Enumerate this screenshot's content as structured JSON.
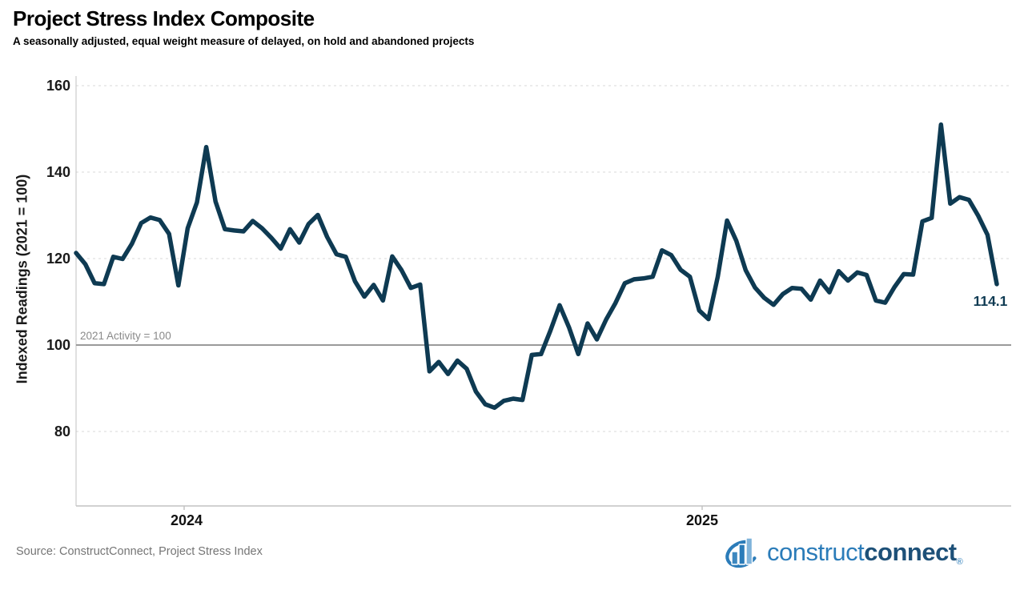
{
  "header": {
    "title": "Project Stress Index Composite",
    "subtitle": "A seasonally adjusted, equal weight measure of delayed, on hold and abandoned projects"
  },
  "chart_data": {
    "type": "line",
    "title": "Project Stress Index Composite",
    "ylabel": "Indexed Readings (2021 = 100)",
    "xlabel": "",
    "ylim": [
      80,
      160
    ],
    "yticks": [
      160,
      140,
      120,
      100,
      80
    ],
    "ytick_labels": [
      "160",
      "140",
      "120",
      "100",
      "80"
    ],
    "xtick_labels": [
      "2024",
      "2025"
    ],
    "grid": "horizontal-dashed",
    "legend": "none",
    "reference_line": {
      "value": 100,
      "label": "2021 Activity = 100"
    },
    "end_label": "114.1",
    "last_value": 114.1,
    "series": [
      {
        "name": "Project Stress Index Composite",
        "values": [
          121.3,
          118.7,
          114.3,
          114.1,
          120.4,
          119.9,
          123.4,
          128.2,
          129.5,
          128.9,
          125.7,
          113.8,
          127.0,
          133.0,
          145.8,
          133.2,
          126.8,
          126.5,
          126.3,
          128.7,
          127.0,
          124.8,
          122.3,
          126.8,
          123.7,
          128.0,
          130.1,
          125.0,
          121.0,
          120.4,
          114.7,
          111.2,
          113.9,
          110.3,
          120.5,
          117.3,
          113.2,
          114.0,
          93.9,
          96.1,
          93.3,
          96.4,
          94.5,
          89.2,
          86.3,
          85.5,
          87.1,
          87.6,
          87.3,
          97.7,
          97.9,
          103.3,
          109.2,
          104.1,
          97.9,
          105.0,
          101.3,
          105.9,
          109.7,
          114.3,
          115.2,
          115.4,
          115.8,
          121.9,
          120.8,
          117.4,
          115.8,
          108.0,
          106.0,
          115.8,
          128.8,
          124.1,
          117.3,
          113.3,
          110.9,
          109.3,
          111.8,
          113.2,
          113.0,
          110.5,
          114.9,
          112.2,
          117.1,
          114.9,
          116.8,
          116.2,
          110.3,
          109.8,
          113.4,
          116.4,
          116.3,
          128.6,
          129.4,
          151.0,
          132.7,
          134.2,
          133.6,
          129.9,
          125.5,
          114.1
        ]
      }
    ]
  },
  "colors": {
    "line": "#0e3a52",
    "grid": "#d9d9d9",
    "axis": "#c2c2c2",
    "reference": "#9a9a9a",
    "logo_light": "#2b7cb9",
    "logo_dark": "#1d5078"
  },
  "footer": {
    "source": "Source: ConstructConnect, Project Stress Index",
    "logo": {
      "construct": "construct",
      "connect": "connect",
      "registered": "®",
      "icon": "bar-chart-swoosh-icon"
    }
  }
}
